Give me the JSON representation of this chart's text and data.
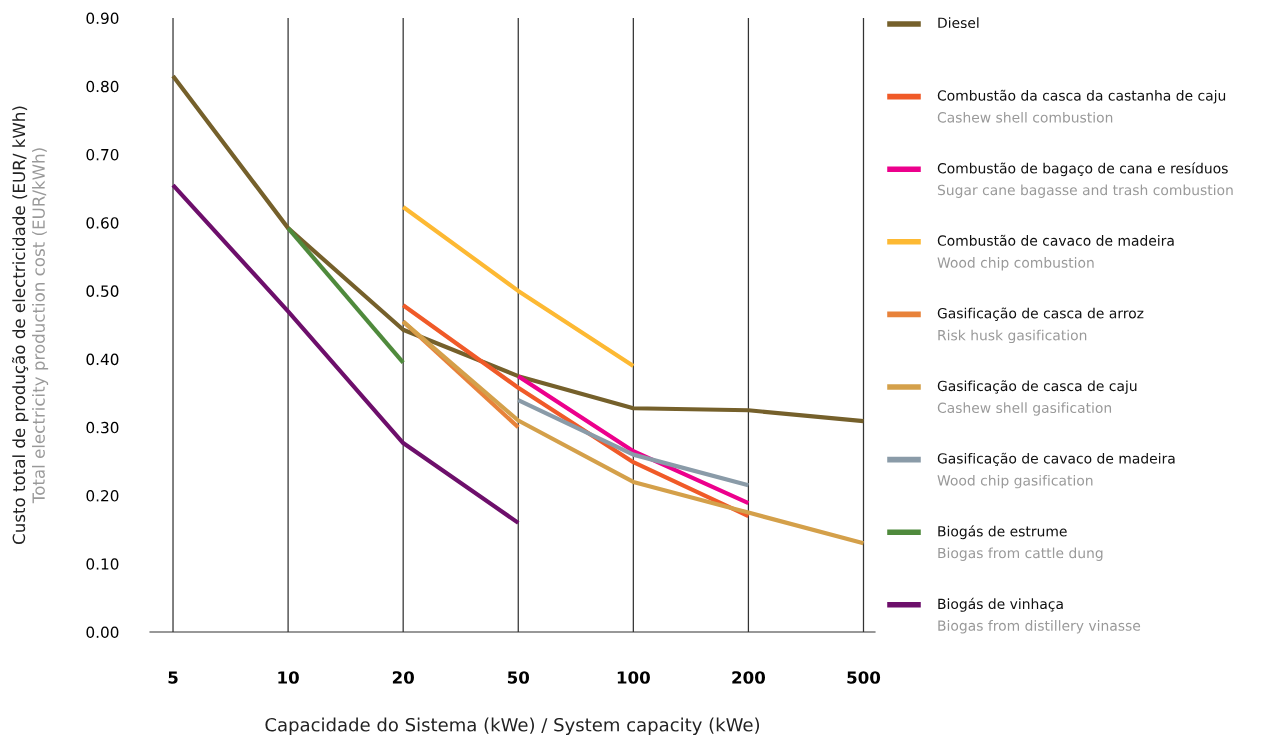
{
  "chart_data": {
    "type": "line",
    "xlabel": "Capacidade do Sistema (kWe) / System capacity (kWe)",
    "ylabel": "Custo total de produção de electricidade (EUR/ kWh)\nTotal electricity production cost (EUR/kWh)",
    "categories": [
      "5",
      "10",
      "20",
      "50",
      "100",
      "200",
      "500"
    ],
    "ylim": [
      0,
      0.9
    ],
    "yticks": [
      {
        "value": 0,
        "label": "0.00"
      },
      {
        "value": 0.1,
        "label": "0.10"
      },
      {
        "value": 0.2,
        "label": "0.20"
      },
      {
        "value": 0.3,
        "label": "0.30"
      },
      {
        "value": 0.4,
        "label": "0.40"
      },
      {
        "value": 0.5,
        "label": "0.50"
      },
      {
        "value": 0.6,
        "label": "0.60"
      },
      {
        "value": 0.7,
        "label": "0.70"
      },
      {
        "value": 0.8,
        "label": "0.80"
      },
      {
        "value": 0.9,
        "label": "0.90"
      }
    ],
    "grid": "x",
    "legend": "right",
    "marker": "none",
    "line_style": "solid",
    "series": [
      {
        "name": "Diesel",
        "color": "#75602b",
        "values": [
          0.815,
          0.592,
          0.443,
          0.375,
          0.328,
          0.325,
          0.309
        ]
      },
      {
        "name": "Combustão da casca da castanha de caju\nCashew shell combustion",
        "color": "#f05a28",
        "values": [
          null,
          null,
          0.479,
          0.358,
          0.249,
          0.17,
          null
        ]
      },
      {
        "name": "Combustão de bagaço de cana e resíduos\nSugar cane bagasse and trash combustion",
        "color": "#ec008c",
        "values": [
          null,
          null,
          null,
          0.375,
          0.265,
          0.189,
          null
        ]
      },
      {
        "name": "Combustão de cavaco de madeira\nWood chip combustion",
        "color": "#fdb933",
        "values": [
          null,
          null,
          0.623,
          0.5,
          0.39,
          null,
          null
        ]
      },
      {
        "name": "Gasificação de casca de arroz\nRisk husk gasification",
        "color": "#e8823a",
        "values": [
          null,
          null,
          0.455,
          0.3,
          null,
          null,
          null
        ]
      },
      {
        "name": "Gasificação de casca de caju\nCashew shell gasification",
        "color": "#d4a04a",
        "values": [
          null,
          null,
          0.455,
          0.31,
          0.22,
          0.175,
          0.13
        ]
      },
      {
        "name": "Gasificação de cavaco de madeira\nWood chip gasification",
        "color": "#8a9ba8",
        "values": [
          null,
          null,
          null,
          0.34,
          0.26,
          0.215,
          null
        ]
      },
      {
        "name": "Biogás de estrume\nBiogas from cattle dung",
        "color": "#4f8a3c",
        "values": [
          null,
          0.592,
          0.395,
          null,
          null,
          null,
          null
        ]
      },
      {
        "name": "Biogás de vinhaça\nBiogas from distillery vinasse",
        "color": "#6d0f6b",
        "values": [
          0.655,
          0.47,
          0.277,
          0.16,
          null,
          null,
          null
        ]
      }
    ]
  }
}
